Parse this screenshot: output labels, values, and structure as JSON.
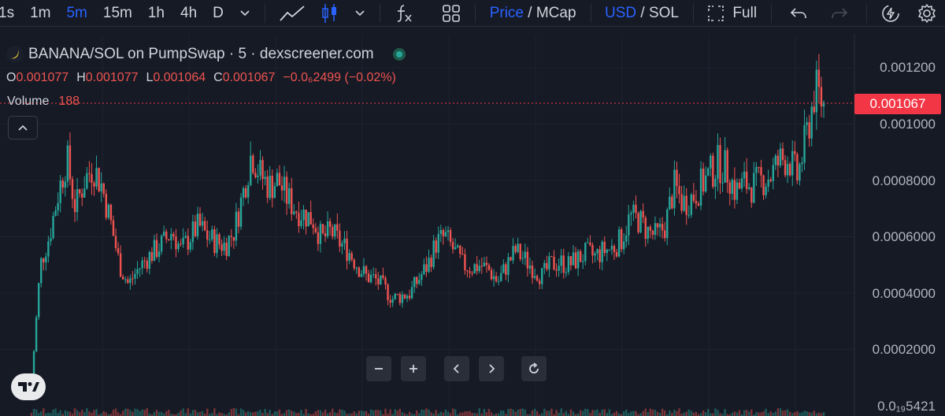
{
  "toolbar": {
    "timeframes": [
      "1s",
      "1m",
      "5m",
      "15m",
      "1h",
      "4h",
      "D"
    ],
    "active_timeframe": "5m",
    "price_label": "Price",
    "mcap_label": "MCap",
    "price_sep": " / ",
    "usd_label": "USD",
    "sol_label": "SOL",
    "full_label": "Full",
    "icons": [
      "chevron-down-icon",
      "line-chart-icon",
      "candles-icon",
      "chevron-down-icon",
      "indicators-icon",
      "layout-icon",
      "fullscreen-icon",
      "undo-icon",
      "redo-icon",
      "lightning-icon",
      "gear-icon"
    ]
  },
  "legend": {
    "title": "BANANA/SOL on PumpSwap · 5 · dexscreener.com",
    "open_label": "O",
    "open_value": "0.001077",
    "high_label": "H",
    "high_value": "0.001077",
    "low_label": "L",
    "low_value": "0.001064",
    "close_label": "C",
    "close_value": "0.001067",
    "change_value": "−0.0₆2499 (−0.02%)",
    "volume_label": "Volume",
    "volume_value": "188"
  },
  "price_axis": {
    "labels": [
      "0.001200",
      "0.001000",
      "0.0008000",
      "0.0006000",
      "0.0004000",
      "0.0002000",
      "0.0₁₉5421"
    ],
    "current_price": "0.001067"
  },
  "colors": {
    "up": "#26a69a",
    "down": "#ef5350",
    "accent": "#2962ff",
    "background": "#161a25",
    "price_tag": "#f23645"
  },
  "nav_icons": [
    "zoom-out-icon",
    "zoom-in-icon",
    "scroll-left-icon",
    "scroll-right-icon",
    "reset-icon"
  ],
  "chart_data": {
    "type": "candlestick",
    "ylim": [
      0.0,
      0.0012
    ],
    "y_ticks": [
      0.0012,
      0.001,
      0.0008,
      0.0006,
      0.0004,
      0.0002
    ],
    "close_series": [
      8e-05,
      0.0005,
      0.0006,
      0.00075,
      0.00088,
      0.0007,
      0.0008,
      0.00085,
      0.00078,
      0.00065,
      0.0005,
      0.00043,
      0.00048,
      0.00052,
      0.00055,
      0.00058,
      0.00062,
      0.00055,
      0.0006,
      0.00064,
      0.0006,
      0.00058,
      0.00057,
      0.00062,
      0.00075,
      0.0009,
      0.00082,
      0.00078,
      0.0008,
      0.00074,
      0.0007,
      0.00068,
      0.00066,
      0.00059,
      0.00062,
      0.00058,
      0.00055,
      0.0005,
      0.00046,
      0.00045,
      0.00042,
      0.00038,
      0.00039,
      0.0004,
      0.00045,
      0.0005,
      0.00058,
      0.0006,
      0.00055,
      0.0005,
      0.00049,
      0.0005,
      0.00048,
      0.00044,
      0.0005,
      0.00055,
      0.00052,
      0.00049,
      0.00046,
      0.0005,
      0.00051,
      0.0005,
      0.00052,
      0.00054,
      0.00053,
      0.00055,
      0.00056,
      0.00059,
      0.00067,
      0.00066,
      0.00062,
      0.0006,
      0.00064,
      0.00078,
      0.00072,
      0.00074,
      0.00078,
      0.00082,
      0.00086,
      0.00084,
      0.00076,
      0.00079,
      0.00078,
      0.0008,
      0.00082,
      0.00087,
      0.00088,
      0.00081,
      0.00095,
      0.00112,
      0.00107
    ]
  }
}
